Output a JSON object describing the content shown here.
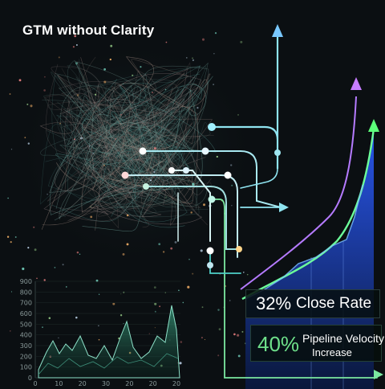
{
  "title": "GTM without Clarity",
  "stats": {
    "close_rate": {
      "value": "32%",
      "label": "Close Rate"
    },
    "pipeline_velocity": {
      "value": "40%",
      "label_line1": "Pipeline Velocity",
      "label_line2": "Increase"
    }
  },
  "mini_chart": {
    "y_ticks": [
      "900",
      "800",
      "700",
      "600",
      "500",
      "400",
      "300",
      "200",
      "100",
      "0"
    ],
    "x_ticks": [
      "0",
      "10",
      "20",
      "30",
      "20",
      "20",
      "20"
    ]
  },
  "colors": {
    "background": "#0b0f12",
    "cyan_flow": "#7fe6e0",
    "blue_arrow": "#79c8ff",
    "purple_arrow": "#c77dff",
    "green_arrow": "#5cff7a",
    "green_stat": "#6ee08a"
  },
  "icons": [
    "up-arrow-icon",
    "right-arrow-icon"
  ]
}
